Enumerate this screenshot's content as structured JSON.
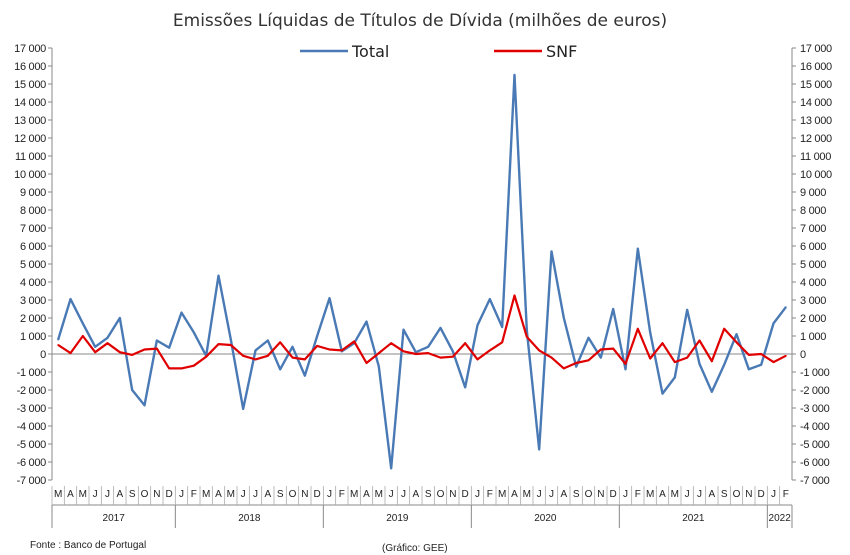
{
  "chart_data": {
    "type": "line",
    "title": "Emissões Líquidas de Títulos de Dívida (milhões de euros)",
    "ylim": [
      -7000,
      17000
    ],
    "y_ticks": [
      "17 000",
      "16 000",
      "15 000",
      "14 000",
      "13 000",
      "12 000",
      "11 000",
      "10 000",
      "9 000",
      "8 000",
      "7 000",
      "6 000",
      "5 000",
      "4 000",
      "3 000",
      "2 000",
      "1 000",
      "0",
      "-1 000",
      "-2 000",
      "-3 000",
      "-4 000",
      "-5 000",
      "-6 000",
      "-7 000"
    ],
    "x_month_labels": [
      "M",
      "A",
      "M",
      "J",
      "J",
      "A",
      "S",
      "O",
      "N",
      "D",
      "J",
      "F",
      "M",
      "A",
      "M",
      "J",
      "J",
      "A",
      "S",
      "O",
      "N",
      "D",
      "J",
      "F",
      "M",
      "A",
      "M",
      "J",
      "J",
      "A",
      "S",
      "O",
      "N",
      "D",
      "J",
      "F",
      "M",
      "A",
      "M",
      "J",
      "J",
      "A",
      "S",
      "O",
      "N",
      "D",
      "J",
      "F",
      "M",
      "A",
      "M",
      "J",
      "J",
      "A",
      "S",
      "O",
      "N",
      "D",
      "J",
      "F"
    ],
    "years": [
      {
        "label": "2017",
        "start": 0,
        "end": 10
      },
      {
        "label": "2018",
        "start": 10,
        "end": 22
      },
      {
        "label": "2019",
        "start": 22,
        "end": 34
      },
      {
        "label": "2020",
        "start": 34,
        "end": 46
      },
      {
        "label": "2021",
        "start": 46,
        "end": 58
      },
      {
        "label": "2022",
        "start": 58,
        "end": 60
      }
    ],
    "legend_position": "top",
    "grid": false,
    "series": [
      {
        "name": "Total",
        "color": "#4a7ab5",
        "values": [
          800,
          3050,
          1700,
          400,
          900,
          2000,
          -2000,
          -2850,
          750,
          350,
          2300,
          1200,
          -100,
          4350,
          800,
          -3050,
          200,
          750,
          -850,
          400,
          -1200,
          1000,
          3100,
          150,
          600,
          1800,
          -700,
          -6350,
          1350,
          100,
          400,
          1450,
          150,
          -1850,
          1600,
          3050,
          1500,
          15500,
          1300,
          -5300,
          5700,
          2000,
          -700,
          900,
          -200,
          2500,
          -850,
          5850,
          1200,
          -2200,
          -1300,
          2450,
          -550,
          -2100,
          -600,
          1100,
          -850,
          -600,
          1700,
          2600
        ]
      },
      {
        "name": "SNF",
        "color": "#e00000",
        "values": [
          500,
          50,
          1000,
          100,
          600,
          100,
          -50,
          250,
          300,
          -800,
          -800,
          -650,
          -150,
          550,
          500,
          -100,
          -300,
          -100,
          650,
          -200,
          -300,
          450,
          250,
          200,
          700,
          -500,
          50,
          600,
          150,
          0,
          50,
          -200,
          -150,
          600,
          -300,
          200,
          650,
          3250,
          950,
          200,
          -200,
          -800,
          -500,
          -350,
          250,
          300,
          -550,
          1400,
          -250,
          600,
          -450,
          -200,
          750,
          -400,
          1400,
          650,
          -50,
          0,
          -450,
          -100
        ]
      }
    ]
  },
  "footer": {
    "source": "Fonte : Banco de Portugal",
    "credit": "(Gráfico: GEE)"
  }
}
